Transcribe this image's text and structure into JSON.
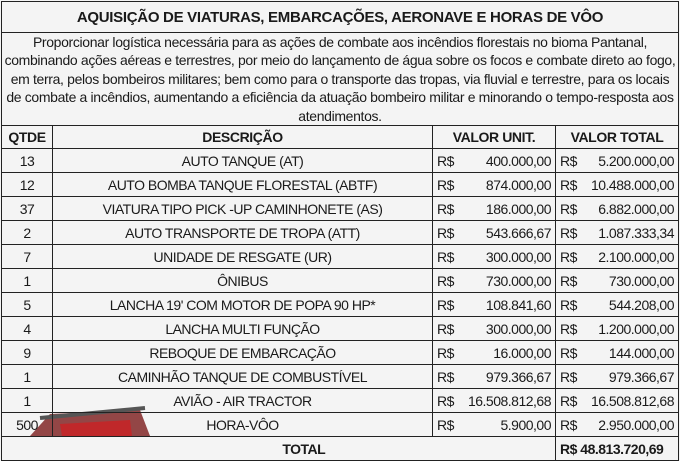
{
  "title": "AQUISIÇÃO DE VIATURAS, EMBARCAÇÕES, AERONAVE E HORAS DE VÔO",
  "description": "Proporcionar logística necessária para as ações de combate aos incêndios florestais no bioma Pantanal, combinando ações aéreas e terrestres, por meio do lançamento de água sobre os focos e combate direto ao fogo, em terra, pelos bombeiros militares; bem como para o transporte das tropas, via fluvial e terrestre, para os locais de combate a incêndios, aumentando a eficiência da atuação bombeiro militar e minorando o tempo-resposta aos atendimentos.",
  "headers": [
    "QTDE",
    "DESCRIÇÃO",
    "VALOR UNIT.",
    "VALOR TOTAL"
  ],
  "currency": "R$",
  "rows": [
    {
      "qty": "13",
      "desc": "AUTO TANQUE (AT)",
      "unit": "400.000,00",
      "total": "5.200.000,00"
    },
    {
      "qty": "12",
      "desc": "AUTO BOMBA TANQUE FLORESTAL (ABTF)",
      "unit": "874.000,00",
      "total": "10.488.000,00"
    },
    {
      "qty": "37",
      "desc": "VIATURA TIPO PICK -UP CAMINHONETE (AS)",
      "unit": "186.000,00",
      "total": "6.882.000,00"
    },
    {
      "qty": "2",
      "desc": "AUTO TRANSPORTE DE TROPA (ATT)",
      "unit": "543.666,67",
      "total": "1.087.333,34"
    },
    {
      "qty": "7",
      "desc": "UNIDADE DE RESGATE (UR)",
      "unit": "300.000,00",
      "total": "2.100.000,00"
    },
    {
      "qty": "1",
      "desc": "ÔNIBUS",
      "unit": "730.000,00",
      "total": "730.000,00"
    },
    {
      "qty": "5",
      "desc": "LANCHA 19' COM MOTOR DE POPA 90 HP*",
      "unit": "108.841,60",
      "total": "544.208,00"
    },
    {
      "qty": "4",
      "desc": "LANCHA MULTI FUNÇÃO",
      "unit": "300.000,00",
      "total": "1.200.000,00"
    },
    {
      "qty": "9",
      "desc": "REBOQUE DE EMBARCAÇÃO",
      "unit": "16.000,00",
      "total": "144.000,00"
    },
    {
      "qty": "1",
      "desc": "CAMINHÃO TANQUE DE COMBUSTÍVEL",
      "unit": "979.366,67",
      "total": "979.366,67"
    },
    {
      "qty": "1",
      "desc": "AVIÃO - AIR TRACTOR",
      "unit": "16.508.812,68",
      "total": "16.508.812,68"
    },
    {
      "qty": "500",
      "desc": "HORA-VÔO",
      "unit": "5.900,00",
      "total": "2.950.000,00"
    }
  ],
  "total": {
    "label": "TOTAL",
    "value": "R$ 48.813.720,69"
  }
}
